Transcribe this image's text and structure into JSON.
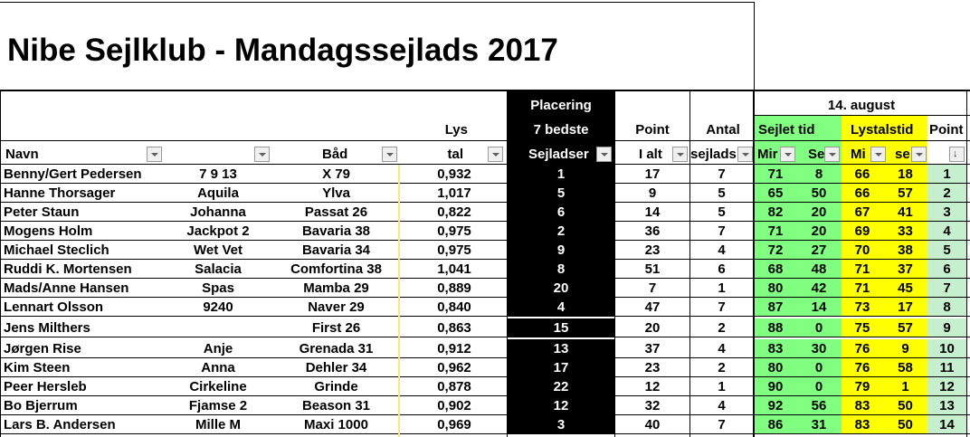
{
  "title": "Nibe Sejlklub - Mandagssejlads 2017",
  "header": {
    "lys_top": "Lys",
    "lys_bottom": "tal",
    "placering_1": "Placering",
    "placering_2": "7 bedste",
    "sejladser": "Sejladser",
    "point_top": "Point",
    "point_bottom": "I alt",
    "antal_top": "Antal",
    "antal_bottom": "sejlads",
    "date": "14. august",
    "sejlet_tid": "Sejlet tid",
    "lystalstid": "Lystalstid",
    "point_right": "Point",
    "navn": "Navn",
    "baad": "Båd",
    "min_a": "Mir",
    "sek_a": "Se",
    "min_b": "Mi",
    "sek_b": "se"
  },
  "rows": [
    {
      "navn": "Benny/Gert Pedersen",
      "sejl": "7 9 13",
      "baad": "X 79",
      "lystal": "0,932",
      "plac": "1",
      "ialt": "17",
      "antal": "7",
      "m1": "71",
      "s1": "8",
      "m2": "66",
      "s2": "18",
      "p": "1"
    },
    {
      "navn": "Hanne Thorsager",
      "sejl": "Aquila",
      "baad": "Ylva",
      "lystal": "1,017",
      "plac": "5",
      "ialt": "9",
      "antal": "5",
      "m1": "65",
      "s1": "50",
      "m2": "66",
      "s2": "57",
      "p": "2"
    },
    {
      "navn": "Peter Staun",
      "sejl": "Johanna",
      "baad": "Passat 26",
      "lystal": "0,822",
      "plac": "6",
      "ialt": "14",
      "antal": "5",
      "m1": "82",
      "s1": "20",
      "m2": "67",
      "s2": "41",
      "p": "3"
    },
    {
      "navn": "Mogens Holm",
      "sejl": "Jackpot 2",
      "baad": "Bavaria 38",
      "lystal": "0,975",
      "plac": "2",
      "ialt": "36",
      "antal": "7",
      "m1": "71",
      "s1": "20",
      "m2": "69",
      "s2": "33",
      "p": "4"
    },
    {
      "navn": "Michael Steclich",
      "sejl": "Wet Vet",
      "baad": "Bavaria 34",
      "lystal": "0,975",
      "plac": "9",
      "ialt": "23",
      "antal": "4",
      "m1": "72",
      "s1": "27",
      "m2": "70",
      "s2": "38",
      "p": "5"
    },
    {
      "navn": "Ruddi K. Mortensen",
      "sejl": "Salacia",
      "baad": "Comfortina 38",
      "lystal": "1,041",
      "plac": "8",
      "ialt": "51",
      "antal": "6",
      "m1": "68",
      "s1": "48",
      "m2": "71",
      "s2": "37",
      "p": "6"
    },
    {
      "navn": "Mads/Anne Hansen",
      "sejl": "Spas",
      "baad": "Mamba 29",
      "lystal": "0,889",
      "plac": "20",
      "ialt": "7",
      "antal": "1",
      "m1": "80",
      "s1": "42",
      "m2": "71",
      "s2": "45",
      "p": "7"
    },
    {
      "navn": "Lennart Olsson",
      "sejl": "9240",
      "baad": "Naver 29",
      "lystal": "0,840",
      "plac": "4",
      "ialt": "47",
      "antal": "7",
      "m1": "87",
      "s1": "14",
      "m2": "73",
      "s2": "17",
      "p": "8"
    },
    {
      "navn": "Jens Milthers",
      "sejl": "",
      "baad": "First 26",
      "lystal": "0,863",
      "plac": "15",
      "ialt": "20",
      "antal": "2",
      "m1": "88",
      "s1": "0",
      "m2": "75",
      "s2": "57",
      "p": "9"
    },
    {
      "navn": "Jørgen Rise",
      "sejl": "Anje",
      "baad": "Grenada 31",
      "lystal": "0,912",
      "plac": "13",
      "ialt": "37",
      "antal": "4",
      "m1": "83",
      "s1": "30",
      "m2": "76",
      "s2": "9",
      "p": "10"
    },
    {
      "navn": "Kim Steen",
      "sejl": "Anna",
      "baad": "Dehler 34",
      "lystal": "0,962",
      "plac": "17",
      "ialt": "23",
      "antal": "2",
      "m1": "80",
      "s1": "0",
      "m2": "76",
      "s2": "58",
      "p": "11"
    },
    {
      "navn": "Peer Hersleb",
      "sejl": "Cirkeline",
      "baad": "Grinde",
      "lystal": "0,878",
      "plac": "22",
      "ialt": "12",
      "antal": "1",
      "m1": "90",
      "s1": "0",
      "m2": "79",
      "s2": "1",
      "p": "12"
    },
    {
      "navn": "Bo Bjerrum",
      "sejl": "Fjamse 2",
      "baad": "Beason 31",
      "lystal": "0,902",
      "plac": "12",
      "ialt": "32",
      "antal": "4",
      "m1": "92",
      "s1": "56",
      "m2": "83",
      "s2": "50",
      "p": "13"
    },
    {
      "navn": "Lars B. Andersen",
      "sejl": "Mille M",
      "baad": "Maxi 1000",
      "lystal": "0,969",
      "plac": "3",
      "ialt": "40",
      "antal": "7",
      "m1": "86",
      "s1": "31",
      "m2": "83",
      "s2": "50",
      "p": "14"
    }
  ]
}
